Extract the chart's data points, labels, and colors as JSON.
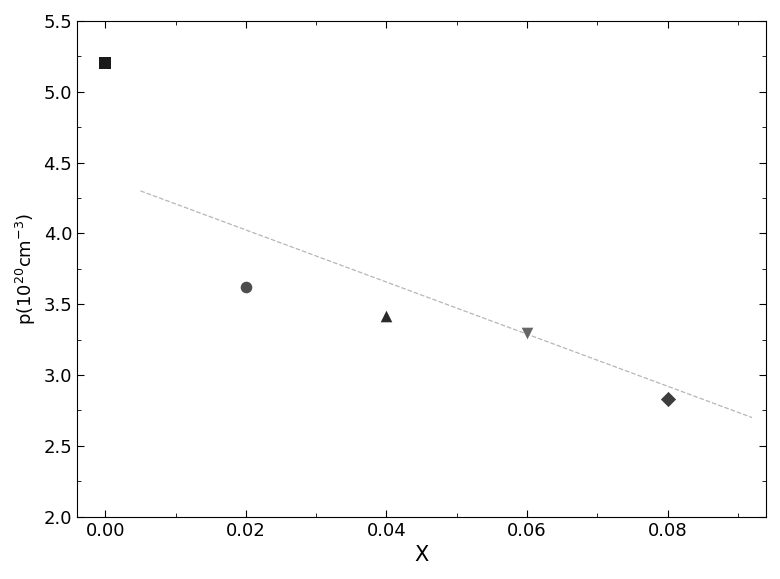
{
  "x_data": [
    0.0,
    0.02,
    0.04,
    0.06,
    0.08
  ],
  "y_data": [
    5.2,
    3.62,
    3.42,
    3.3,
    2.83
  ],
  "markers": [
    "s",
    "o",
    "^",
    "v",
    "D"
  ],
  "marker_colors": [
    "#1a1a1a",
    "#4d4d4d",
    "#2a2a2a",
    "#666666",
    "#3d3d3d"
  ],
  "marker_sizes": [
    70,
    70,
    70,
    70,
    60
  ],
  "fit_x": [
    0.005,
    0.092
  ],
  "fit_y": [
    4.3,
    2.7
  ],
  "fit_color": "#aaaaaa",
  "xlabel": "X",
  "ylabel": "p(10$^{20}$cm$^{-3}$)",
  "xlim": [
    -0.004,
    0.094
  ],
  "ylim": [
    2.0,
    5.5
  ],
  "xticks": [
    0.0,
    0.02,
    0.04,
    0.06,
    0.08
  ],
  "yticks": [
    2.0,
    2.5,
    3.0,
    3.5,
    4.0,
    4.5,
    5.0,
    5.5
  ],
  "xlabel_fontsize": 15,
  "ylabel_fontsize": 13,
  "tick_fontsize": 13,
  "figsize": [
    7.8,
    5.79
  ],
  "dpi": 100
}
